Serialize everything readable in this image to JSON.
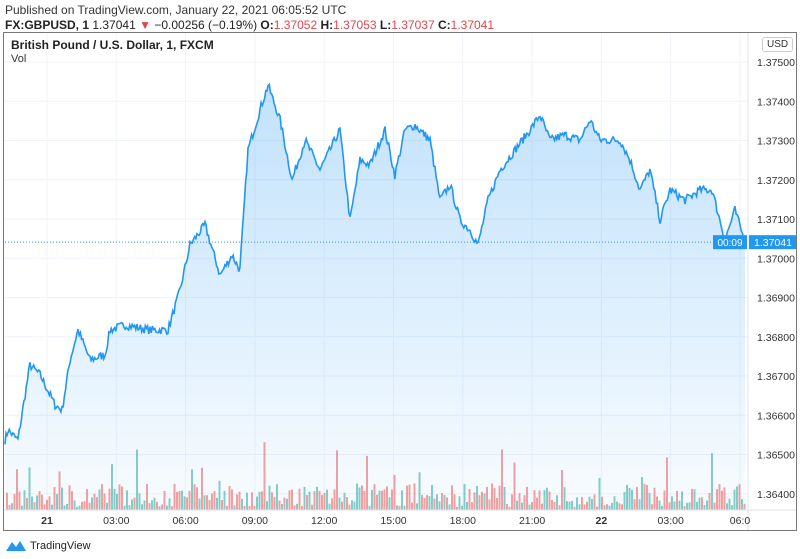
{
  "header": {
    "published": "Published on TradingView.com, January 22, 2021 06:05:52 UTC",
    "symbol": "FX:GBPUSD, 1",
    "last": "1.37041",
    "change": "−0.00256 (−0.19%)",
    "o_label": "O:",
    "o": "1.37052",
    "h_label": "H:",
    "h": "1.37053",
    "l_label": "L:",
    "l": "1.37037",
    "c_label": "C:",
    "c": "1.37041"
  },
  "legend": {
    "title": "British Pound / U.S. Dollar, 1, FXCM",
    "vol": "Vol"
  },
  "currency": "USD",
  "price_badge": "1.37041",
  "countdown": "00:09",
  "footer": {
    "brand": "TradingView"
  },
  "colors": {
    "line": "#2196f3",
    "up": "#26a69a",
    "down": "#ef5350",
    "badge": "#2196f3"
  },
  "chart_data": {
    "type": "area",
    "title": "British Pound / U.S. Dollar, 1, FXCM",
    "xlabel": "",
    "ylabel": "USD",
    "ylim": [
      1.3638,
      1.3757
    ],
    "y_ticks": [
      "1.37500",
      "1.37400",
      "1.37300",
      "1.37200",
      "1.37100",
      "1.37000",
      "1.36900",
      "1.36800",
      "1.36700",
      "1.36600",
      "1.36500",
      "1.36400"
    ],
    "x_ticks": [
      {
        "label": "21",
        "h": 0,
        "bold": true
      },
      {
        "label": "03:00",
        "h": 3
      },
      {
        "label": "06:00",
        "h": 6
      },
      {
        "label": "09:00",
        "h": 9
      },
      {
        "label": "12:00",
        "h": 12
      },
      {
        "label": "15:00",
        "h": 15
      },
      {
        "label": "18:00",
        "h": 18
      },
      {
        "label": "21:00",
        "h": 21
      },
      {
        "label": "22",
        "h": 24,
        "bold": true
      },
      {
        "label": "03:00",
        "h": 27
      },
      {
        "label": "06:0",
        "h": 30
      }
    ],
    "series": [
      {
        "name": "GBPUSD close",
        "x_unit": "hours since Jan 21 00:00 UTC",
        "points": [
          [
            -1.82,
            1.36537
          ],
          [
            -1.69,
            1.36562
          ],
          [
            -1.26,
            1.36537
          ],
          [
            -0.74,
            1.36728
          ],
          [
            -0.3,
            1.36703
          ],
          [
            0.35,
            1.36626
          ],
          [
            0.65,
            1.36613
          ],
          [
            1.0,
            1.36741
          ],
          [
            1.34,
            1.36817
          ],
          [
            1.86,
            1.36741
          ],
          [
            2.51,
            1.36754
          ],
          [
            2.73,
            1.36817
          ],
          [
            3.38,
            1.3683
          ],
          [
            4.46,
            1.36817
          ],
          [
            5.24,
            1.36817
          ],
          [
            5.76,
            1.36919
          ],
          [
            6.19,
            1.37034
          ],
          [
            6.84,
            1.37085
          ],
          [
            7.49,
            1.36957
          ],
          [
            8.01,
            1.37008
          ],
          [
            8.35,
            1.3697
          ],
          [
            8.7,
            1.37276
          ],
          [
            9.22,
            1.37378
          ],
          [
            9.57,
            1.37441
          ],
          [
            10.09,
            1.37352
          ],
          [
            10.61,
            1.37199
          ],
          [
            11.17,
            1.37301
          ],
          [
            11.82,
            1.37225
          ],
          [
            12.68,
            1.37327
          ],
          [
            13.12,
            1.37097
          ],
          [
            13.55,
            1.3725
          ],
          [
            13.98,
            1.37238
          ],
          [
            14.63,
            1.37327
          ],
          [
            15.06,
            1.37212
          ],
          [
            15.5,
            1.37327
          ],
          [
            15.93,
            1.37339
          ],
          [
            16.58,
            1.37301
          ],
          [
            17.01,
            1.37148
          ],
          [
            17.45,
            1.37187
          ],
          [
            17.88,
            1.37097
          ],
          [
            18.31,
            1.37072
          ],
          [
            18.66,
            1.37034
          ],
          [
            19.09,
            1.37148
          ],
          [
            19.61,
            1.37225
          ],
          [
            20.26,
            1.37276
          ],
          [
            20.91,
            1.37327
          ],
          [
            21.34,
            1.37365
          ],
          [
            21.77,
            1.37301
          ],
          [
            22.42,
            1.37314
          ],
          [
            23.07,
            1.37301
          ],
          [
            23.51,
            1.37352
          ],
          [
            23.94,
            1.37301
          ],
          [
            24.81,
            1.37301
          ],
          [
            25.24,
            1.3725
          ],
          [
            25.67,
            1.37174
          ],
          [
            26.1,
            1.37225
          ],
          [
            26.54,
            1.37097
          ],
          [
            26.97,
            1.37174
          ],
          [
            27.62,
            1.37148
          ],
          [
            28.27,
            1.37174
          ],
          [
            28.79,
            1.37174
          ],
          [
            29.35,
            1.37047
          ],
          [
            29.78,
            1.37123
          ],
          [
            30.22,
            1.37041
          ]
        ]
      }
    ],
    "last_price": 1.37041,
    "grid": true
  }
}
